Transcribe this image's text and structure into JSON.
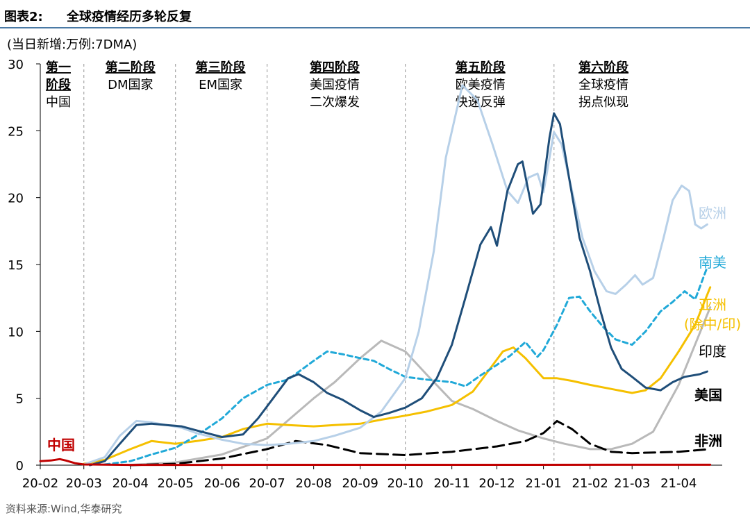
{
  "header": {
    "figure_label": "图表2:",
    "title": "全球疫情经历多轮反复",
    "unit_note": "(当日新增:万例:7DMA)"
  },
  "footer": {
    "source": "资料来源:Wind,华泰研究"
  },
  "colors": {
    "header_rule": "#4a7aa5",
    "europe": "#b7d0e8",
    "us": "#1f4e79",
    "south_america": "#21a9d8",
    "asia": "#f5c000",
    "india": "#b9b9b9",
    "africa": "#000000",
    "china": "#c00000",
    "phase_divider": "#a6a6a6",
    "axis": "#000000"
  },
  "chart_data": {
    "type": "line",
    "ylim": [
      0,
      30
    ],
    "yticks": [
      0,
      5,
      10,
      15,
      20,
      25,
      30
    ],
    "x_range": [
      "2020-02-01",
      "2021-04-30"
    ],
    "x_ticks": [
      {
        "date": "2020-02-01",
        "label": "20-02"
      },
      {
        "date": "2020-03-01",
        "label": "20-03"
      },
      {
        "date": "2020-04-01",
        "label": "20-04"
      },
      {
        "date": "2020-05-01",
        "label": "20-05"
      },
      {
        "date": "2020-06-01",
        "label": "20-06"
      },
      {
        "date": "2020-07-01",
        "label": "20-07"
      },
      {
        "date": "2020-08-01",
        "label": "20-08"
      },
      {
        "date": "2020-09-01",
        "label": "20-09"
      },
      {
        "date": "2020-10-01",
        "label": "20-10"
      },
      {
        "date": "2020-11-01",
        "label": "20-11"
      },
      {
        "date": "2020-12-01",
        "label": "20-12"
      },
      {
        "date": "2021-01-01",
        "label": "21-01"
      },
      {
        "date": "2021-02-01",
        "label": "21-02"
      },
      {
        "date": "2021-03-01",
        "label": "21-03"
      },
      {
        "date": "2021-04-01",
        "label": "21-04"
      }
    ],
    "phase_dividers": [
      "2020-03-01",
      "2020-05-01",
      "2020-07-01",
      "2020-10-01",
      "2021-01-08"
    ],
    "phases": [
      {
        "title": "第一阶段",
        "lines": [
          "中国"
        ],
        "center": "2020-02-13"
      },
      {
        "title": "第二阶段",
        "lines": [
          "DM国家"
        ],
        "center": "2020-04-01"
      },
      {
        "title": "第三阶段",
        "lines": [
          "EM国家"
        ],
        "center": "2020-05-31"
      },
      {
        "title": "第四阶段",
        "lines": [
          "美国疫情",
          "二次爆发"
        ],
        "center": "2020-08-15"
      },
      {
        "title": "第五阶段",
        "lines": [
          "欧美疫情",
          "快速反弹"
        ],
        "center": "2020-11-20"
      },
      {
        "title": "第六阶段",
        "lines": [
          "全球疫情",
          "拐点似现"
        ],
        "center": "2021-02-10"
      }
    ],
    "series": [
      {
        "name": "欧洲",
        "key": "europe",
        "style": "solid",
        "points": [
          [
            "2020-03-01",
            0.05
          ],
          [
            "2020-03-15",
            0.6
          ],
          [
            "2020-03-25",
            2.2
          ],
          [
            "2020-04-05",
            3.3
          ],
          [
            "2020-04-15",
            3.2
          ],
          [
            "2020-04-25",
            3.0
          ],
          [
            "2020-05-05",
            2.8
          ],
          [
            "2020-05-15",
            2.4
          ],
          [
            "2020-06-01",
            1.9
          ],
          [
            "2020-06-15",
            1.6
          ],
          [
            "2020-07-01",
            1.5
          ],
          [
            "2020-07-15",
            1.6
          ],
          [
            "2020-08-01",
            1.8
          ],
          [
            "2020-08-15",
            2.2
          ],
          [
            "2020-09-01",
            2.8
          ],
          [
            "2020-09-15",
            4.0
          ],
          [
            "2020-10-01",
            6.5
          ],
          [
            "2020-10-10",
            10.0
          ],
          [
            "2020-10-20",
            16.0
          ],
          [
            "2020-10-28",
            23.0
          ],
          [
            "2020-11-08",
            28.4
          ],
          [
            "2020-11-18",
            27.3
          ],
          [
            "2020-11-28",
            24.0
          ],
          [
            "2020-12-08",
            20.5
          ],
          [
            "2020-12-15",
            19.6
          ],
          [
            "2020-12-22",
            21.5
          ],
          [
            "2020-12-28",
            21.8
          ],
          [
            "2021-01-01",
            20.4
          ],
          [
            "2021-01-08",
            24.9
          ],
          [
            "2021-01-13",
            24.0
          ],
          [
            "2021-01-20",
            20.5
          ],
          [
            "2021-01-27",
            17.0
          ],
          [
            "2021-02-04",
            14.5
          ],
          [
            "2021-02-12",
            13.0
          ],
          [
            "2021-02-18",
            12.8
          ],
          [
            "2021-02-25",
            13.5
          ],
          [
            "2021-03-03",
            14.2
          ],
          [
            "2021-03-08",
            13.5
          ],
          [
            "2021-03-15",
            14.0
          ],
          [
            "2021-03-22",
            17.0
          ],
          [
            "2021-03-28",
            19.8
          ],
          [
            "2021-04-03",
            20.9
          ],
          [
            "2021-04-08",
            20.5
          ],
          [
            "2021-04-12",
            18.0
          ],
          [
            "2021-04-16",
            17.7
          ],
          [
            "2021-04-20",
            18.0
          ]
        ]
      },
      {
        "name": "美国",
        "key": "us",
        "style": "solid",
        "points": [
          [
            "2020-03-05",
            0.0
          ],
          [
            "2020-03-15",
            0.3
          ],
          [
            "2020-03-25",
            1.6
          ],
          [
            "2020-04-05",
            3.0
          ],
          [
            "2020-04-15",
            3.1
          ],
          [
            "2020-04-25",
            3.0
          ],
          [
            "2020-05-05",
            2.9
          ],
          [
            "2020-05-15",
            2.6
          ],
          [
            "2020-06-01",
            2.1
          ],
          [
            "2020-06-15",
            2.3
          ],
          [
            "2020-06-25",
            3.5
          ],
          [
            "2020-07-05",
            5.0
          ],
          [
            "2020-07-15",
            6.5
          ],
          [
            "2020-07-22",
            6.8
          ],
          [
            "2020-08-01",
            6.2
          ],
          [
            "2020-08-10",
            5.4
          ],
          [
            "2020-08-20",
            4.9
          ],
          [
            "2020-09-01",
            4.1
          ],
          [
            "2020-09-10",
            3.6
          ],
          [
            "2020-09-20",
            3.9
          ],
          [
            "2020-10-01",
            4.3
          ],
          [
            "2020-10-12",
            5.0
          ],
          [
            "2020-10-22",
            6.5
          ],
          [
            "2020-11-01",
            9.0
          ],
          [
            "2020-11-10",
            12.5
          ],
          [
            "2020-11-20",
            16.5
          ],
          [
            "2020-11-27",
            17.8
          ],
          [
            "2020-12-01",
            16.4
          ],
          [
            "2020-12-08",
            20.5
          ],
          [
            "2020-12-15",
            22.5
          ],
          [
            "2020-12-18",
            22.7
          ],
          [
            "2020-12-25",
            18.8
          ],
          [
            "2020-12-30",
            19.5
          ],
          [
            "2021-01-05",
            24.5
          ],
          [
            "2021-01-08",
            26.3
          ],
          [
            "2021-01-12",
            25.5
          ],
          [
            "2021-01-18",
            21.5
          ],
          [
            "2021-01-25",
            17.0
          ],
          [
            "2021-02-01",
            14.5
          ],
          [
            "2021-02-08",
            11.5
          ],
          [
            "2021-02-15",
            8.8
          ],
          [
            "2021-02-22",
            7.2
          ],
          [
            "2021-03-01",
            6.6
          ],
          [
            "2021-03-10",
            5.8
          ],
          [
            "2021-03-20",
            5.6
          ],
          [
            "2021-03-28",
            6.2
          ],
          [
            "2021-04-05",
            6.6
          ],
          [
            "2021-04-15",
            6.8
          ],
          [
            "2021-04-20",
            7.0
          ]
        ]
      },
      {
        "name": "南美",
        "key": "south_america",
        "style": "dashed",
        "points": [
          [
            "2020-03-15",
            0.05
          ],
          [
            "2020-04-01",
            0.3
          ],
          [
            "2020-04-15",
            0.8
          ],
          [
            "2020-05-01",
            1.3
          ],
          [
            "2020-05-15",
            2.2
          ],
          [
            "2020-06-01",
            3.5
          ],
          [
            "2020-06-15",
            5.0
          ],
          [
            "2020-07-01",
            6.0
          ],
          [
            "2020-07-15",
            6.4
          ],
          [
            "2020-08-01",
            7.8
          ],
          [
            "2020-08-10",
            8.5
          ],
          [
            "2020-08-20",
            8.3
          ],
          [
            "2020-09-01",
            8.0
          ],
          [
            "2020-09-10",
            7.8
          ],
          [
            "2020-09-20",
            7.2
          ],
          [
            "2020-10-01",
            6.6
          ],
          [
            "2020-10-15",
            6.4
          ],
          [
            "2020-11-01",
            6.2
          ],
          [
            "2020-11-10",
            5.9
          ],
          [
            "2020-11-20",
            6.7
          ],
          [
            "2020-12-01",
            7.5
          ],
          [
            "2020-12-10",
            8.2
          ],
          [
            "2020-12-20",
            9.2
          ],
          [
            "2020-12-28",
            8.1
          ],
          [
            "2021-01-01",
            8.6
          ],
          [
            "2021-01-10",
            10.5
          ],
          [
            "2021-01-18",
            12.5
          ],
          [
            "2021-01-25",
            12.6
          ],
          [
            "2021-02-01",
            11.5
          ],
          [
            "2021-02-10",
            10.3
          ],
          [
            "2021-02-18",
            9.4
          ],
          [
            "2021-03-01",
            9.0
          ],
          [
            "2021-03-10",
            10.0
          ],
          [
            "2021-03-20",
            11.5
          ],
          [
            "2021-03-28",
            12.2
          ],
          [
            "2021-04-05",
            13.0
          ],
          [
            "2021-04-12",
            12.4
          ],
          [
            "2021-04-20",
            14.8
          ]
        ]
      },
      {
        "name": "亚洲(除中/印)",
        "key": "asia",
        "style": "solid",
        "points": [
          [
            "2020-03-01",
            0.1
          ],
          [
            "2020-03-15",
            0.4
          ],
          [
            "2020-04-01",
            1.2
          ],
          [
            "2020-04-15",
            1.8
          ],
          [
            "2020-05-01",
            1.6
          ],
          [
            "2020-05-15",
            1.8
          ],
          [
            "2020-06-01",
            2.1
          ],
          [
            "2020-06-15",
            2.7
          ],
          [
            "2020-07-01",
            3.1
          ],
          [
            "2020-07-15",
            3.0
          ],
          [
            "2020-08-01",
            2.9
          ],
          [
            "2020-08-15",
            3.0
          ],
          [
            "2020-09-01",
            3.1
          ],
          [
            "2020-09-15",
            3.4
          ],
          [
            "2020-10-01",
            3.7
          ],
          [
            "2020-10-15",
            4.0
          ],
          [
            "2020-11-01",
            4.5
          ],
          [
            "2020-11-15",
            5.5
          ],
          [
            "2020-11-25",
            7.0
          ],
          [
            "2020-12-05",
            8.5
          ],
          [
            "2020-12-12",
            8.8
          ],
          [
            "2020-12-20",
            8.0
          ],
          [
            "2021-01-01",
            6.5
          ],
          [
            "2021-01-10",
            6.5
          ],
          [
            "2021-01-20",
            6.3
          ],
          [
            "2021-02-01",
            6.0
          ],
          [
            "2021-02-15",
            5.7
          ],
          [
            "2021-03-01",
            5.4
          ],
          [
            "2021-03-10",
            5.6
          ],
          [
            "2021-03-20",
            6.5
          ],
          [
            "2021-04-01",
            8.5
          ],
          [
            "2021-04-12",
            10.5
          ],
          [
            "2021-04-22",
            13.3
          ]
        ]
      },
      {
        "name": "印度",
        "key": "india",
        "style": "solid",
        "points": [
          [
            "2020-04-01",
            0.02
          ],
          [
            "2020-05-01",
            0.2
          ],
          [
            "2020-06-01",
            0.8
          ],
          [
            "2020-07-01",
            2.0
          ],
          [
            "2020-08-01",
            5.0
          ],
          [
            "2020-08-15",
            6.2
          ],
          [
            "2020-09-01",
            8.0
          ],
          [
            "2020-09-15",
            9.3
          ],
          [
            "2020-10-01",
            8.5
          ],
          [
            "2020-10-15",
            6.8
          ],
          [
            "2020-11-01",
            4.8
          ],
          [
            "2020-11-15",
            4.2
          ],
          [
            "2020-12-01",
            3.3
          ],
          [
            "2020-12-15",
            2.6
          ],
          [
            "2021-01-01",
            2.0
          ],
          [
            "2021-01-15",
            1.6
          ],
          [
            "2021-02-01",
            1.2
          ],
          [
            "2021-02-15",
            1.2
          ],
          [
            "2021-03-01",
            1.6
          ],
          [
            "2021-03-15",
            2.5
          ],
          [
            "2021-04-01",
            6.0
          ],
          [
            "2021-04-22",
            11.8
          ]
        ]
      },
      {
        "name": "非洲",
        "key": "africa",
        "style": "longdash",
        "points": [
          [
            "2020-04-01",
            0.0
          ],
          [
            "2020-05-01",
            0.1
          ],
          [
            "2020-06-01",
            0.5
          ],
          [
            "2020-07-01",
            1.2
          ],
          [
            "2020-07-20",
            1.8
          ],
          [
            "2020-08-10",
            1.5
          ],
          [
            "2020-09-01",
            0.9
          ],
          [
            "2020-10-01",
            0.75
          ],
          [
            "2020-11-01",
            1.0
          ],
          [
            "2020-12-01",
            1.4
          ],
          [
            "2020-12-20",
            1.8
          ],
          [
            "2021-01-01",
            2.4
          ],
          [
            "2021-01-10",
            3.3
          ],
          [
            "2021-01-20",
            2.7
          ],
          [
            "2021-02-01",
            1.6
          ],
          [
            "2021-02-15",
            1.0
          ],
          [
            "2021-03-01",
            0.9
          ],
          [
            "2021-04-01",
            1.0
          ],
          [
            "2021-04-22",
            1.2
          ]
        ]
      },
      {
        "name": "中国",
        "key": "china",
        "style": "solid",
        "points": [
          [
            "2020-02-01",
            0.3
          ],
          [
            "2020-02-08",
            0.35
          ],
          [
            "2020-02-14",
            0.45
          ],
          [
            "2020-02-18",
            0.35
          ],
          [
            "2020-02-24",
            0.15
          ],
          [
            "2020-03-01",
            0.05
          ],
          [
            "2020-04-01",
            0.02
          ],
          [
            "2021-04-22",
            0.03
          ]
        ]
      }
    ],
    "series_label_lines": {
      "europe": [
        "欧洲"
      ],
      "south_america": [
        "南美"
      ],
      "asia": [
        "亚洲",
        "(除中/印)"
      ],
      "india": [
        "印度"
      ],
      "us": [
        "美国"
      ],
      "africa": [
        "非洲"
      ],
      "china": [
        "中国"
      ]
    }
  }
}
